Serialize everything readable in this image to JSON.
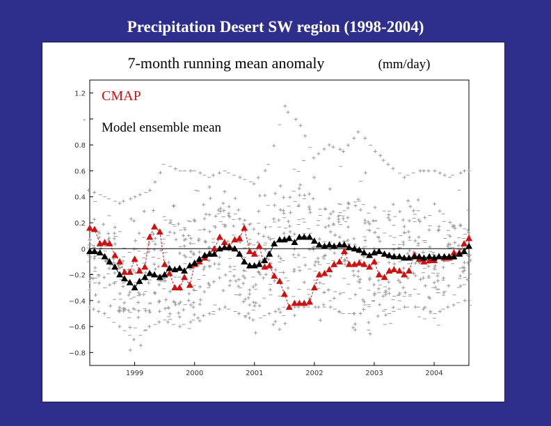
{
  "slide": {
    "title": "Precipitation Desert SW region (1998-2004)"
  },
  "chart_data": {
    "type": "line",
    "title_main": "7-month running mean anomaly",
    "title_units": "(mm/day)",
    "x_tick_labels": [
      "1999",
      "2000",
      "2001",
      "2002",
      "2003",
      "2004"
    ],
    "x_ticks_year": [
      1999,
      2000,
      2001,
      2002,
      2003,
      2004
    ],
    "xlim": [
      1998.25,
      2004.58
    ],
    "ylim": [
      -0.9,
      1.3
    ],
    "y_ticks": [
      1.2,
      1.0,
      0.8,
      0.6,
      0.4,
      0.2,
      0,
      -0.2,
      -0.4,
      -0.6,
      -0.8
    ],
    "y_tick_labels": [
      "1.2",
      "-",
      "0.8",
      "0.6",
      "0.4",
      "0.2",
      "0",
      "−0.2",
      "−0.4",
      "−0.6",
      "−0.8"
    ],
    "legend": [
      {
        "name": "CMAP",
        "color": "#cc1111"
      },
      {
        "name": "Model ensemble mean",
        "color": "#000000"
      }
    ],
    "colors": {
      "cmap": "#cc1111",
      "model": "#000000",
      "members": "#9a9a9a",
      "zero_line": "#000000"
    },
    "series": [
      {
        "name": "CMAP",
        "color": "#cc1111",
        "x": [
          1998.25,
          1998.33,
          1998.42,
          1998.5,
          1998.58,
          1998.67,
          1998.75,
          1998.83,
          1998.92,
          1999.0,
          1999.08,
          1999.17,
          1999.25,
          1999.33,
          1999.42,
          1999.5,
          1999.58,
          1999.67,
          1999.75,
          1999.83,
          1999.92,
          2000.0,
          2000.08,
          2000.17,
          2000.25,
          2000.33,
          2000.42,
          2000.5,
          2000.58,
          2000.67,
          2000.75,
          2000.83,
          2000.92,
          2001.0,
          2001.08,
          2001.17,
          2001.25,
          2001.33,
          2001.42,
          2001.5,
          2001.58,
          2001.67,
          2001.75,
          2001.83,
          2001.92,
          2002.0,
          2002.08,
          2002.17,
          2002.25,
          2002.33,
          2002.42,
          2002.5,
          2002.58,
          2002.67,
          2002.75,
          2002.83,
          2002.92,
          2003.0,
          2003.08,
          2003.17,
          2003.25,
          2003.33,
          2003.42,
          2003.5,
          2003.58,
          2003.67,
          2003.75,
          2003.83,
          2003.92,
          2004.0,
          2004.08,
          2004.17,
          2004.25,
          2004.33,
          2004.42,
          2004.5,
          2004.58
        ],
        "values": [
          0.16,
          0.15,
          0.04,
          0.05,
          0.04,
          -0.05,
          -0.1,
          -0.18,
          -0.18,
          -0.08,
          -0.17,
          -0.14,
          0.09,
          0.17,
          0.13,
          -0.12,
          -0.19,
          -0.3,
          -0.3,
          -0.22,
          -0.28,
          -0.12,
          -0.1,
          -0.07,
          -0.04,
          0.0,
          0.09,
          0.05,
          0.02,
          0.07,
          0.08,
          0.16,
          -0.02,
          -0.04,
          0.02,
          -0.14,
          -0.13,
          -0.21,
          -0.25,
          -0.35,
          -0.45,
          -0.42,
          -0.42,
          -0.42,
          -0.41,
          -0.3,
          -0.2,
          -0.19,
          -0.16,
          -0.12,
          -0.1,
          -0.02,
          -0.12,
          -0.12,
          -0.11,
          -0.12,
          -0.14,
          -0.1,
          -0.2,
          -0.22,
          -0.17,
          -0.16,
          -0.17,
          -0.2,
          -0.17,
          -0.05,
          -0.08,
          -0.1,
          -0.09,
          -0.09,
          -0.06,
          -0.07,
          -0.07,
          -0.03,
          -0.03,
          0.04,
          0.08
        ]
      },
      {
        "name": "Model ensemble mean",
        "color": "#000000",
        "x": [
          1998.25,
          1998.33,
          1998.42,
          1998.5,
          1998.58,
          1998.67,
          1998.75,
          1998.83,
          1998.92,
          1999.0,
          1999.08,
          1999.17,
          1999.25,
          1999.33,
          1999.42,
          1999.5,
          1999.58,
          1999.67,
          1999.75,
          1999.83,
          1999.92,
          2000.0,
          2000.08,
          2000.17,
          2000.25,
          2000.33,
          2000.42,
          2000.5,
          2000.58,
          2000.67,
          2000.75,
          2000.83,
          2000.92,
          2001.0,
          2001.08,
          2001.17,
          2001.25,
          2001.33,
          2001.42,
          2001.5,
          2001.58,
          2001.67,
          2001.75,
          2001.83,
          2001.92,
          2002.0,
          2002.08,
          2002.17,
          2002.25,
          2002.33,
          2002.42,
          2002.5,
          2002.58,
          2002.67,
          2002.75,
          2002.83,
          2002.92,
          2003.0,
          2003.08,
          2003.17,
          2003.25,
          2003.33,
          2003.42,
          2003.5,
          2003.58,
          2003.67,
          2003.75,
          2003.83,
          2003.92,
          2004.0,
          2004.08,
          2004.17,
          2004.25,
          2004.33,
          2004.42,
          2004.5,
          2004.58
        ],
        "values": [
          -0.02,
          -0.02,
          -0.03,
          -0.06,
          -0.1,
          -0.14,
          -0.2,
          -0.23,
          -0.26,
          -0.3,
          -0.25,
          -0.22,
          -0.19,
          -0.2,
          -0.22,
          -0.2,
          -0.15,
          -0.16,
          -0.15,
          -0.17,
          -0.13,
          -0.11,
          -0.08,
          -0.05,
          -0.04,
          -0.04,
          0.0,
          0.01,
          0.01,
          0.0,
          -0.04,
          -0.1,
          -0.13,
          -0.13,
          -0.12,
          -0.09,
          -0.04,
          0.04,
          0.07,
          0.07,
          0.08,
          0.05,
          0.09,
          0.09,
          0.09,
          0.06,
          0.03,
          0.02,
          0.03,
          0.02,
          0.03,
          0.03,
          0.01,
          0.0,
          -0.01,
          -0.03,
          -0.05,
          -0.03,
          -0.02,
          -0.04,
          -0.05,
          -0.06,
          -0.06,
          -0.07,
          -0.07,
          -0.06,
          -0.06,
          -0.07,
          -0.06,
          -0.07,
          -0.06,
          -0.06,
          -0.06,
          -0.06,
          -0.04,
          -0.02,
          0.02
        ]
      }
    ],
    "ensemble_members_note": "Individual ensemble member values plotted as grey + and - markers at each month",
    "ensemble_members": {
      "marker": "+",
      "spread_by_x": [
        [
          1998.25,
          -0.45,
          0.45
        ],
        [
          1998.5,
          -0.5,
          0.4
        ],
        [
          1998.75,
          -0.6,
          0.35
        ],
        [
          1999.0,
          -0.7,
          0.4
        ],
        [
          1999.25,
          -0.6,
          0.45
        ],
        [
          1999.5,
          -0.55,
          0.65
        ],
        [
          1999.75,
          -0.6,
          0.6
        ],
        [
          2000.0,
          -0.55,
          0.6
        ],
        [
          2000.25,
          -0.5,
          0.55
        ],
        [
          2000.5,
          -0.45,
          0.6
        ],
        [
          2000.75,
          -0.5,
          0.55
        ],
        [
          2001.0,
          -0.55,
          0.5
        ],
        [
          2001.25,
          -0.5,
          0.65
        ],
        [
          2001.5,
          -0.45,
          1.1
        ],
        [
          2001.75,
          -0.45,
          0.95
        ],
        [
          2002.0,
          -0.45,
          0.7
        ],
        [
          2002.25,
          -0.45,
          0.8
        ],
        [
          2002.5,
          -0.5,
          0.75
        ],
        [
          2002.75,
          -0.5,
          0.9
        ],
        [
          2003.0,
          -0.4,
          0.75
        ],
        [
          2003.25,
          -0.5,
          0.65
        ],
        [
          2003.5,
          -0.45,
          0.55
        ],
        [
          2003.75,
          -0.45,
          0.6
        ],
        [
          2004.0,
          -0.5,
          0.6
        ],
        [
          2004.25,
          -0.45,
          0.55
        ],
        [
          2004.5,
          -0.4,
          0.6
        ]
      ]
    }
  }
}
